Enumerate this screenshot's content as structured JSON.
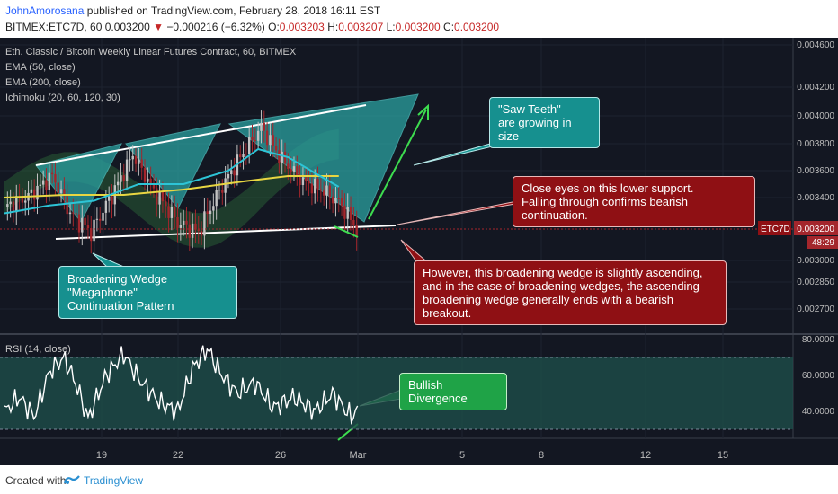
{
  "header": {
    "author": "JohnAmorosana",
    "published": "published on TradingView.com, February 28, 2018 16:11 EST",
    "symbol_line": "BITMEX:ETC7D, 60",
    "last": "0.003200",
    "change_arrow": "▼",
    "change": "−0.000216 (−6.32%)",
    "open_label": "O:",
    "open": "0.003203",
    "high_label": "H:",
    "high": "0.003207",
    "low_label": "L:",
    "low": "0.003200",
    "close_label": "C:",
    "close": "0.003200"
  },
  "indicators": {
    "title": "Eth. Classic / Bitcoin Weekly Linear Futures Contract, 60, BITMEX",
    "ema50": "EMA (50, close)",
    "ema200": "EMA (200, close)",
    "ichimoku": "Ichimoku (20, 60, 120, 30)",
    "rsi": "RSI (14, close)"
  },
  "price_badge": {
    "label": "ETC7D",
    "value": "0.003200",
    "countdown": "48:29"
  },
  "annotations": {
    "saw_teeth": [
      "\"Saw Teeth\"",
      "are growing in size"
    ],
    "support": [
      "Close eyes on this lower support.",
      "Falling through confirms bearish continuation."
    ],
    "wedge": [
      "Broadening Wedge \"Megaphone\"",
      "Continuation Pattern"
    ],
    "ascending": [
      "However, this broadening wedge is slightly ascending,",
      "and in the case of broadening wedges, the ascending",
      "broadening wedge generally ends with a bearish breakout."
    ],
    "divergence": [
      "Bullish Divergence"
    ]
  },
  "footer": {
    "created_with": "Created with",
    "brand": "TradingView"
  },
  "colors": {
    "bg": "#131722",
    "candle_up": "#c2c2c2",
    "candle_down": "#a4262c",
    "ema50": "#2dc4d6",
    "ema200": "#e8d642",
    "kumo_green": "#2c6b3a",
    "kumo_red": "#6b3a2c",
    "triangle_fill": "#2aa1a0",
    "callout_teal": "#16908f",
    "callout_red": "#8f1014",
    "callout_green": "#1fa347",
    "rsi_line": "#ffffff",
    "rsi_band": "#1e4d4a",
    "arrow_green": "#3ddc4f"
  },
  "chart_data": {
    "type": "candlestick",
    "price_axis": {
      "ticks": [
        "0.004600",
        "0.004200",
        "0.004000",
        "0.003800",
        "0.003600",
        "0.003400",
        "0.003000",
        "0.002850",
        "0.002700"
      ],
      "tick_values": [
        0.0046,
        0.0042,
        0.004,
        0.0038,
        0.0036,
        0.0034,
        0.003,
        0.00285,
        0.0027
      ]
    },
    "rsi_axis": {
      "ticks": [
        "80.0000",
        "60.0000",
        "40.0000"
      ],
      "tick_values": [
        80,
        60,
        40
      ],
      "band": [
        30,
        70
      ]
    },
    "x_axis_labels": [
      "19",
      "22",
      "26",
      "Mar",
      "5",
      "8",
      "12",
      "15"
    ],
    "last_price": 0.0032,
    "price_path": [
      [
        0,
        0.00334
      ],
      [
        8,
        0.00341
      ],
      [
        16,
        0.00356
      ],
      [
        22,
        0.0033
      ],
      [
        29,
        0.00318
      ],
      [
        36,
        0.00342
      ],
      [
        43,
        0.00372
      ],
      [
        50,
        0.00345
      ],
      [
        58,
        0.00324
      ],
      [
        65,
        0.00318
      ],
      [
        72,
        0.00345
      ],
      [
        79,
        0.0037
      ],
      [
        86,
        0.00392
      ],
      [
        93,
        0.00368
      ],
      [
        100,
        0.00352
      ],
      [
        107,
        0.00345
      ],
      [
        113,
        0.00335
      ],
      [
        118,
        0.0032
      ]
    ],
    "rsi_path": [
      [
        0,
        40
      ],
      [
        5,
        48
      ],
      [
        10,
        37
      ],
      [
        15,
        62
      ],
      [
        20,
        70
      ],
      [
        24,
        55
      ],
      [
        28,
        36
      ],
      [
        34,
        60
      ],
      [
        40,
        72
      ],
      [
        45,
        58
      ],
      [
        52,
        45
      ],
      [
        58,
        40
      ],
      [
        63,
        64
      ],
      [
        68,
        75
      ],
      [
        72,
        62
      ],
      [
        78,
        50
      ],
      [
        84,
        56
      ],
      [
        90,
        42
      ],
      [
        97,
        48
      ],
      [
        104,
        40
      ],
      [
        110,
        50
      ],
      [
        116,
        37
      ],
      [
        119,
        42
      ]
    ],
    "ema50_path": [
      [
        0,
        0.0033
      ],
      [
        15,
        0.00335
      ],
      [
        30,
        0.00338
      ],
      [
        45,
        0.0035
      ],
      [
        60,
        0.0035
      ],
      [
        75,
        0.0036
      ],
      [
        85,
        0.00376
      ],
      [
        95,
        0.0037
      ],
      [
        105,
        0.00357
      ],
      [
        112,
        0.00348
      ]
    ],
    "ema200_path": [
      [
        0,
        0.0034
      ],
      [
        20,
        0.00342
      ],
      [
        40,
        0.00342
      ],
      [
        60,
        0.00346
      ],
      [
        80,
        0.00352
      ],
      [
        95,
        0.00356
      ],
      [
        112,
        0.00356
      ]
    ]
  }
}
